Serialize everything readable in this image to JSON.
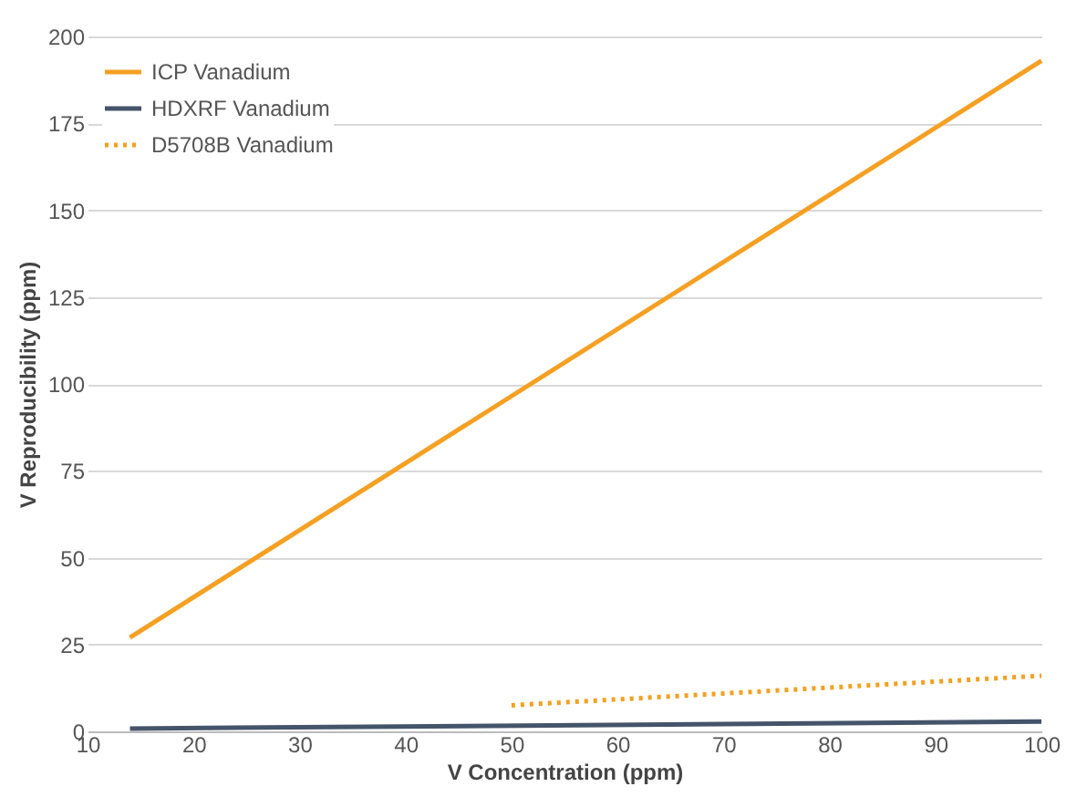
{
  "chart_data": {
    "type": "line",
    "xlabel": "V Concentration (ppm)",
    "ylabel": "V Reproducibility (ppm)",
    "xlim": [
      10,
      100
    ],
    "xticks": [
      10,
      20,
      30,
      40,
      50,
      60,
      70,
      80,
      90,
      100
    ],
    "ylim": [
      0,
      200
    ],
    "yticks": [
      0,
      25,
      50,
      75,
      100,
      125,
      150,
      175,
      200
    ],
    "grid": "y",
    "legend": "top left",
    "series": [
      {
        "name": "ICP Vanadium",
        "color": "#f5a023",
        "x": [
          14,
          100
        ],
        "values": [
          27,
          193
        ],
        "line_style": "solid"
      },
      {
        "name": "HDXRF Vanadium",
        "color": "#44546a",
        "x": [
          14,
          100
        ],
        "values": [
          0.8,
          2.8
        ],
        "line_style": "solid"
      },
      {
        "name": "D5708B Vanadium",
        "color": "#f5a023",
        "x": [
          50,
          100
        ],
        "values": [
          7.5,
          16
        ],
        "line_style": "dotted"
      }
    ]
  }
}
